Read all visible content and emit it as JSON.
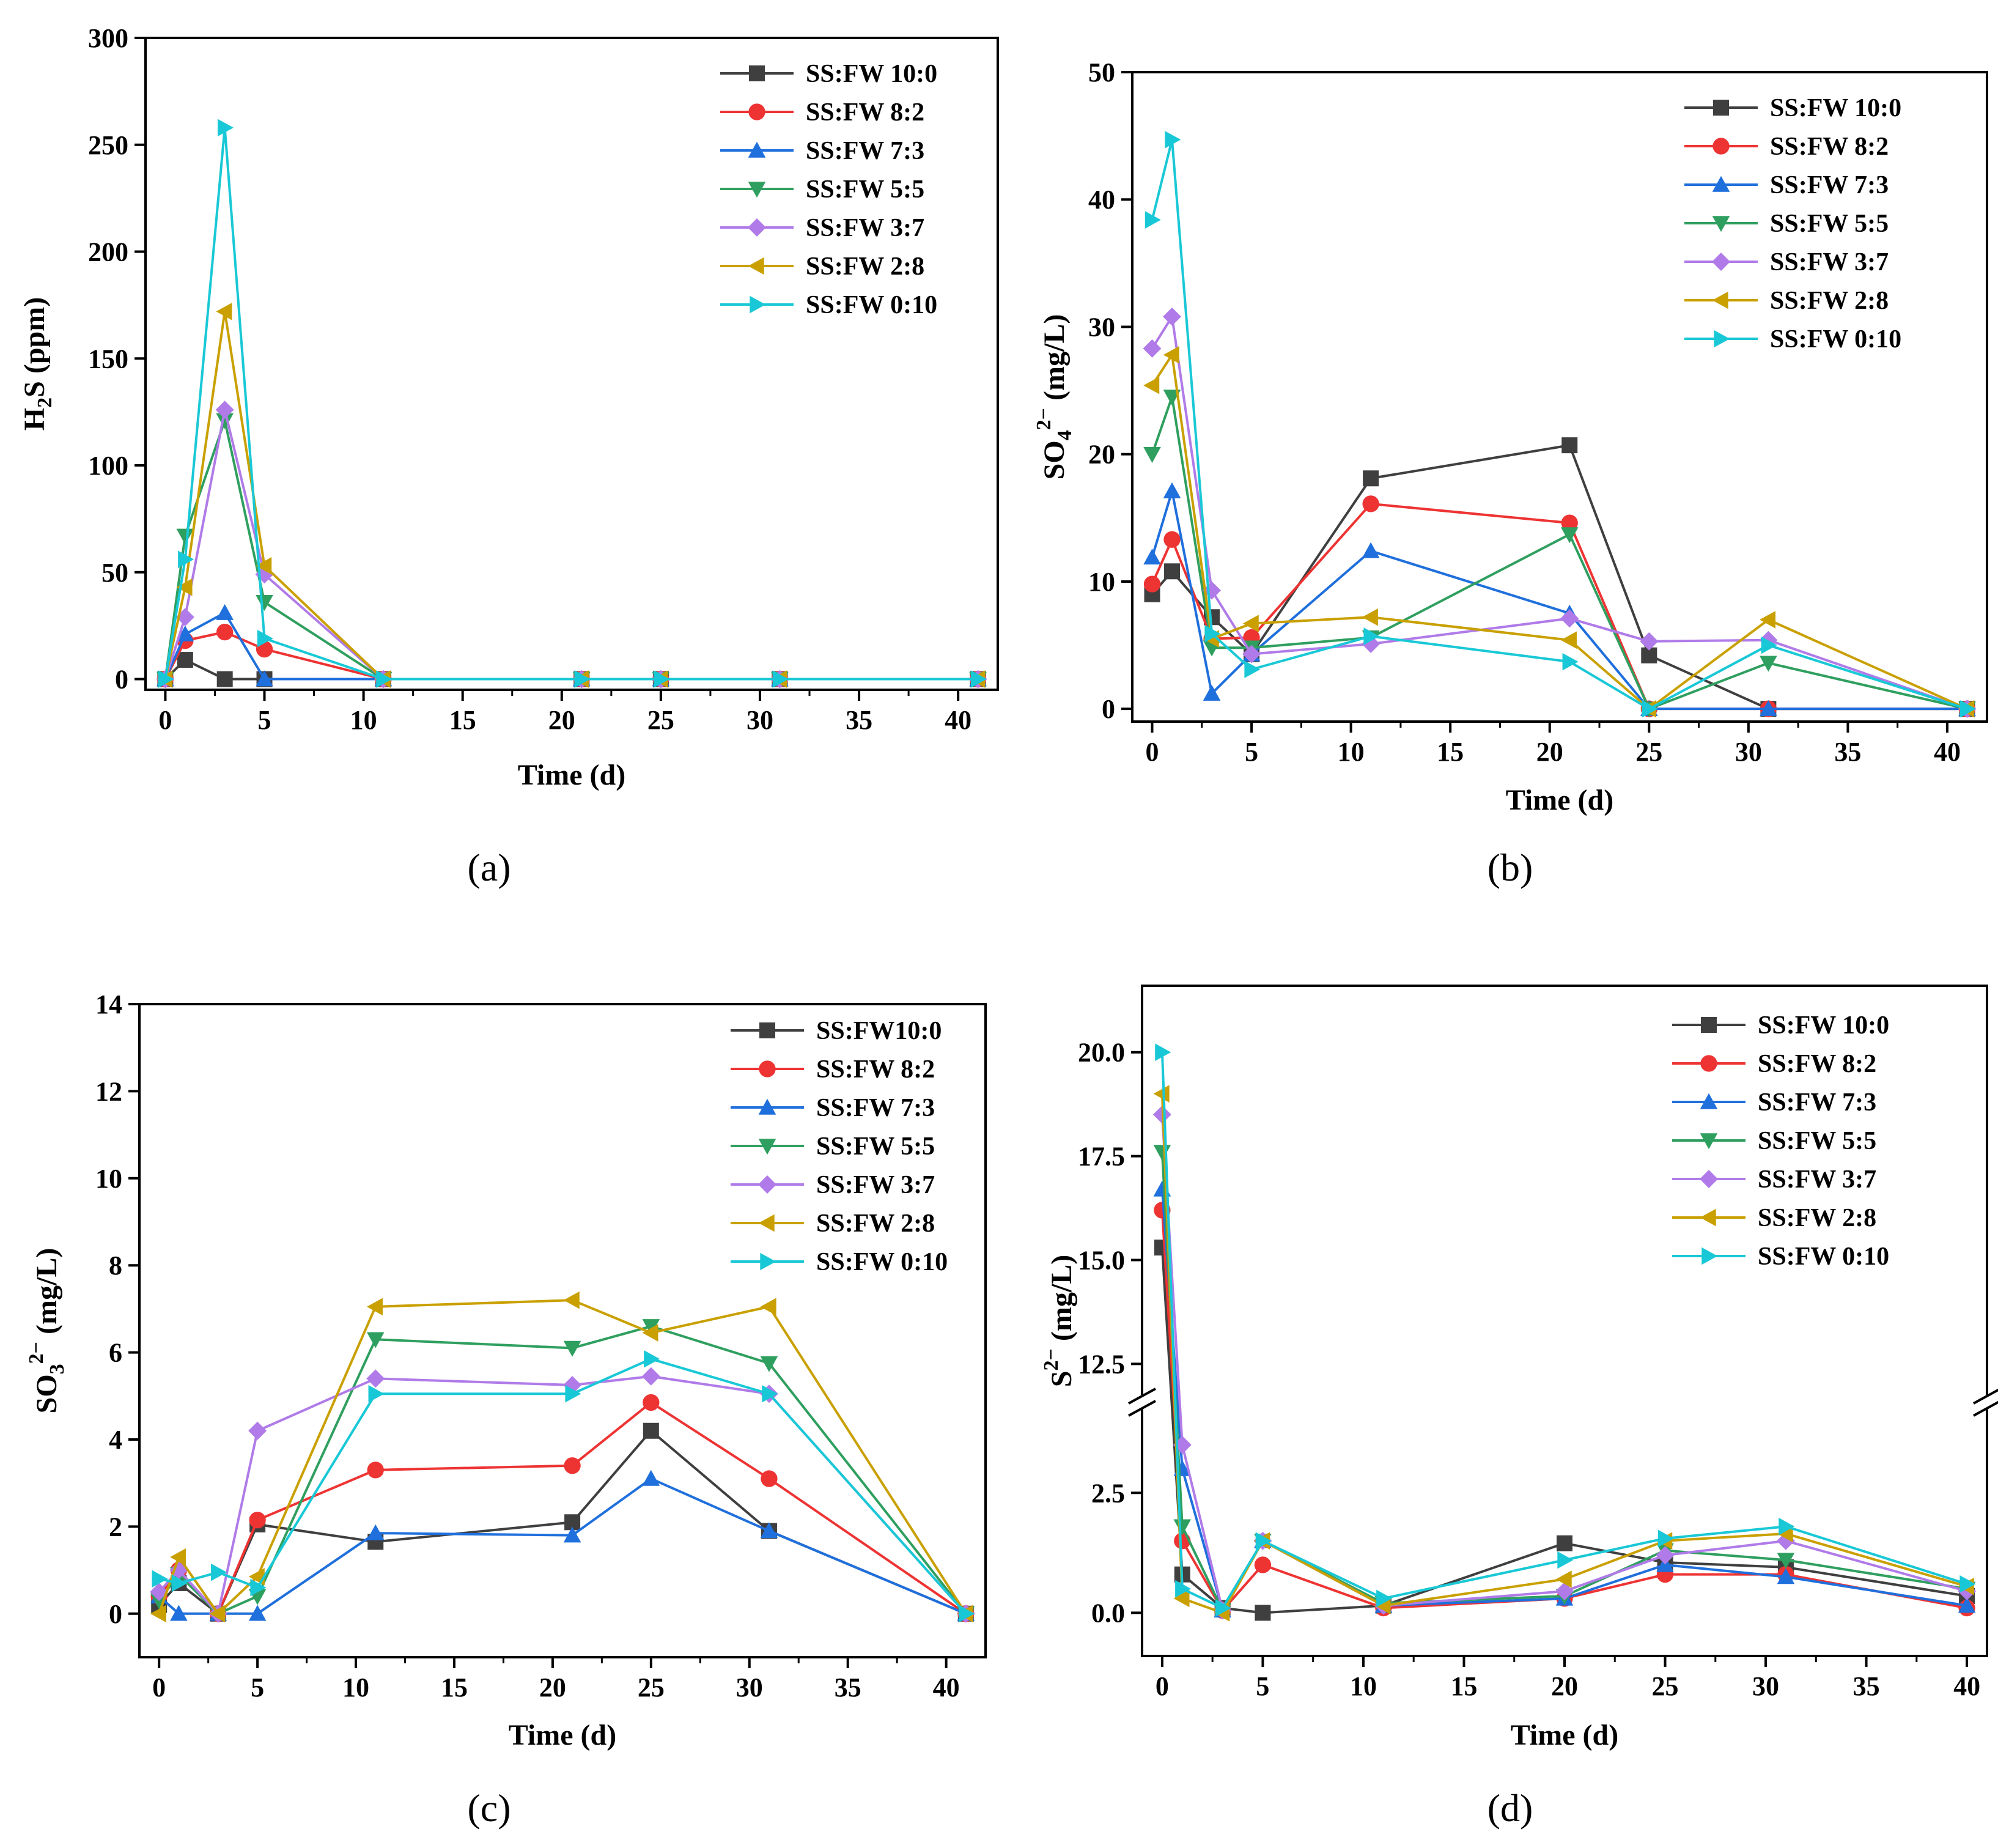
{
  "colors": {
    "SS:FW 10:0": "#3f3f3f",
    "SS:FW 8:2": "#ee3333",
    "SS:FW 7:3": "#1f6fdc",
    "SS:FW 5:5": "#2f9f5f",
    "SS:FW 3:7": "#b07be8",
    "SS:FW 2:8": "#c9a000",
    "SS:FW 0:10": "#19c8d6"
  },
  "markers": {
    "SS:FW 10:0": "square",
    "SS:FW 8:2": "circle",
    "SS:FW 7:3": "triangle-up",
    "SS:FW 5:5": "triangle-down",
    "SS:FW 3:7": "diamond",
    "SS:FW 2:8": "triangle-left",
    "SS:FW 0:10": "triangle-right"
  },
  "chart_data": [
    {
      "id": "a",
      "panel_label": "(a)",
      "type": "line",
      "xlabel": "Time (d)",
      "ylabel": "H₂S (ppm)",
      "xlim": [
        -1,
        42
      ],
      "ylim": [
        -5,
        300
      ],
      "xticks": [
        0,
        5,
        10,
        15,
        20,
        25,
        30,
        35,
        40
      ],
      "yticks": [
        0,
        50,
        100,
        150,
        200,
        250,
        300
      ],
      "legend": "top-right",
      "x": [
        0,
        1,
        3,
        5,
        11,
        21,
        25,
        31,
        41
      ],
      "series": [
        {
          "name": "SS:FW 10:0",
          "values": [
            0,
            9,
            0,
            0,
            0,
            0,
            0,
            0,
            0
          ]
        },
        {
          "name": "SS:FW 8:2",
          "values": [
            0,
            18,
            22,
            14,
            0,
            0,
            0,
            0,
            0
          ]
        },
        {
          "name": "SS:FW 7:3",
          "values": [
            0,
            21,
            31,
            0,
            0,
            0,
            0,
            0,
            0
          ]
        },
        {
          "name": "SS:FW 5:5",
          "values": [
            0,
            67,
            121,
            36,
            0,
            0,
            0,
            0,
            0
          ]
        },
        {
          "name": "SS:FW 3:7",
          "values": [
            0,
            29,
            126,
            49,
            0,
            0,
            0,
            0,
            0
          ]
        },
        {
          "name": "SS:FW 2:8",
          "values": [
            0,
            43,
            172,
            53,
            0,
            0,
            0,
            0,
            0
          ]
        },
        {
          "name": "SS:FW 0:10",
          "values": [
            0,
            56,
            258,
            19,
            0,
            0,
            0,
            0,
            0
          ]
        }
      ]
    },
    {
      "id": "b",
      "panel_label": "(b)",
      "type": "line",
      "xlabel": "Time (d)",
      "ylabel": "SO₄²⁻ (mg/L)",
      "xlim": [
        -1,
        42
      ],
      "ylim": [
        -1,
        50
      ],
      "xticks": [
        0,
        5,
        10,
        15,
        20,
        25,
        30,
        35,
        40
      ],
      "yticks": [
        0,
        10,
        20,
        30,
        40,
        50
      ],
      "legend": "top-right",
      "x": [
        0,
        1,
        3,
        5,
        11,
        21,
        25,
        31,
        41
      ],
      "series": [
        {
          "name": "SS:FW 10:0",
          "values": [
            9,
            10.8,
            7.2,
            4.3,
            18.1,
            20.7,
            4.2,
            0,
            0
          ]
        },
        {
          "name": "SS:FW 8:2",
          "values": [
            9.8,
            13.3,
            5.5,
            5.6,
            16.1,
            14.6,
            0,
            0,
            0
          ]
        },
        {
          "name": "SS:FW 7:3",
          "values": [
            11.9,
            17.1,
            1.2,
            4.3,
            12.4,
            7.5,
            0,
            0,
            0
          ]
        },
        {
          "name": "SS:FW 5:5",
          "values": [
            20,
            24.5,
            4.8,
            4.8,
            5.6,
            13.7,
            0,
            3.6,
            0
          ]
        },
        {
          "name": "SS:FW 3:7",
          "values": [
            28.3,
            30.8,
            9.3,
            4.3,
            5.1,
            7.1,
            5.3,
            5.4,
            0
          ]
        },
        {
          "name": "SS:FW 2:8",
          "values": [
            25.4,
            27.8,
            5.5,
            6.7,
            7.2,
            5.4,
            0,
            7,
            0
          ]
        },
        {
          "name": "SS:FW 0:10",
          "values": [
            38.4,
            44.7,
            5.9,
            3.1,
            5.7,
            3.7,
            0,
            5,
            0
          ]
        }
      ]
    },
    {
      "id": "c",
      "panel_label": "(c)",
      "type": "line",
      "xlabel": "Time (d)",
      "ylabel": "SO₃²⁻ (mg/L)",
      "xlim": [
        -1,
        42
      ],
      "ylim": [
        -1,
        14
      ],
      "xticks": [
        0,
        5,
        10,
        15,
        20,
        25,
        30,
        35,
        40
      ],
      "yticks": [
        0,
        2,
        4,
        6,
        8,
        10,
        12,
        14
      ],
      "legend": "top-right",
      "x": [
        0,
        1,
        3,
        5,
        11,
        21,
        25,
        31,
        41
      ],
      "series": [
        {
          "name": "SS:FW10:0",
          "values": [
            0.2,
            0.7,
            0,
            2.05,
            1.65,
            2.1,
            4.2,
            1.9,
            0
          ]
        },
        {
          "name": "SS:FW 8:2",
          "values": [
            0.4,
            1,
            0,
            2.15,
            3.3,
            3.4,
            4.85,
            3.1,
            0
          ]
        },
        {
          "name": "SS:FW 7:3",
          "values": [
            0.4,
            0,
            0,
            0,
            1.85,
            1.8,
            3.1,
            1.9,
            0
          ]
        },
        {
          "name": "SS:FW 5:5",
          "values": [
            0.3,
            0.9,
            0,
            0.4,
            6.3,
            6.1,
            6.6,
            5.75,
            0
          ]
        },
        {
          "name": "SS:FW 3:7",
          "values": [
            0.5,
            1,
            0,
            4.2,
            5.4,
            5.25,
            5.45,
            5.05,
            0
          ]
        },
        {
          "name": "SS:FW 2:8",
          "values": [
            0,
            1.3,
            0,
            0.85,
            7.05,
            7.2,
            6.45,
            7.05,
            0
          ]
        },
        {
          "name": "SS:FW 0:10",
          "values": [
            0.8,
            0.7,
            0.95,
            0.6,
            5.05,
            5.05,
            5.85,
            5.05,
            0
          ]
        }
      ]
    },
    {
      "id": "d",
      "panel_label": "(d)",
      "type": "line",
      "xlabel": "Time (d)",
      "ylabel": "S²⁻ (mg/L)",
      "xlim": [
        -1,
        41
      ],
      "ylim_lower": [
        -0.9,
        4.2
      ],
      "ylim_upper": [
        11.8,
        21.6
      ],
      "xticks": [
        0,
        5,
        10,
        15,
        20,
        25,
        30,
        35,
        40
      ],
      "yticks": [
        "0.0",
        "2.5",
        "12.5",
        "15.0",
        "17.5",
        "20.0"
      ],
      "axis_break": true,
      "legend": "top-right",
      "x": [
        0,
        1,
        3,
        5,
        11,
        20,
        25,
        31,
        40
      ],
      "series": [
        {
          "name": "SS:FW 10:0",
          "values": [
            15.3,
            0.8,
            0.1,
            0,
            0.15,
            1.45,
            1.05,
            0.95,
            0.35
          ]
        },
        {
          "name": "SS:FW 8:2",
          "values": [
            16.2,
            1.5,
            0.05,
            1,
            0.1,
            0.3,
            0.8,
            0.8,
            0.1
          ]
        },
        {
          "name": "SS:FW 7:3",
          "values": [
            16.7,
            3,
            0.05,
            1.5,
            0.15,
            0.3,
            1,
            0.75,
            0.15
          ]
        },
        {
          "name": "SS:FW 5:5",
          "values": [
            17.6,
            1.8,
            0.05,
            1.5,
            0.2,
            0.35,
            1.3,
            1.1,
            0.5
          ]
        },
        {
          "name": "SS:FW 3:7",
          "values": [
            18.5,
            3.5,
            0.05,
            1.5,
            0.15,
            0.45,
            1.2,
            1.5,
            0.45
          ]
        },
        {
          "name": "SS:FW 2:8",
          "values": [
            19,
            0.3,
            0,
            1.5,
            0.15,
            0.7,
            1.5,
            1.65,
            0.55
          ]
        },
        {
          "name": "SS:FW 0:10",
          "values": [
            20,
            0.5,
            0.1,
            1.5,
            0.3,
            1.1,
            1.55,
            1.8,
            0.6
          ]
        }
      ]
    }
  ]
}
